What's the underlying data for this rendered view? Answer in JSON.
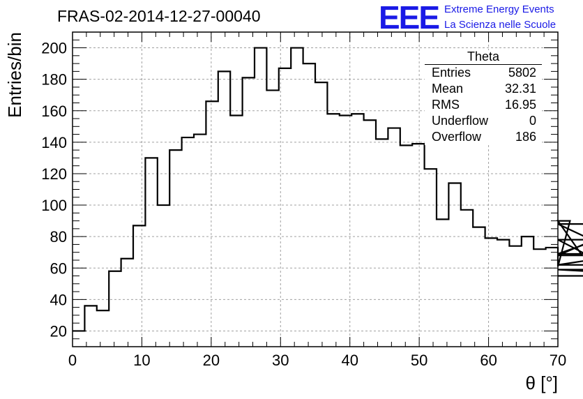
{
  "header": {
    "title": "FRAS-02-2014-12-27-00040"
  },
  "logo": {
    "mark": "EEE",
    "line1": "Extreme Energy Events",
    "line2": "La Scienza nelle Scuole",
    "color": "#1a1ae6"
  },
  "stats_box": {
    "title": "Theta",
    "rows": [
      {
        "label": "Entries",
        "value": "5802"
      },
      {
        "label": "Mean",
        "value": "32.31"
      },
      {
        "label": "RMS",
        "value": "16.95"
      },
      {
        "label": "Underflow",
        "value": "0"
      },
      {
        "label": "Overflow",
        "value": "186"
      }
    ]
  },
  "chart_data": {
    "type": "histogram",
    "title": "FRAS-02-2014-12-27-00040",
    "xlabel": "θ [°]",
    "ylabel": "Entries/bin",
    "xlim": [
      0,
      70
    ],
    "ylim": [
      10,
      210
    ],
    "x_ticks": [
      0,
      10,
      20,
      30,
      40,
      50,
      60,
      70
    ],
    "y_ticks": [
      20,
      40,
      60,
      80,
      100,
      120,
      140,
      160,
      180,
      200
    ],
    "grid": true,
    "bin_width": 1.75,
    "bin_edges_start": 0,
    "values": [
      20,
      36,
      33,
      58,
      66,
      87,
      130,
      100,
      135,
      143,
      145,
      166,
      185,
      157,
      181,
      200,
      173,
      187,
      200,
      190,
      178,
      158,
      157,
      158,
      154,
      142,
      149,
      138,
      139,
      123,
      91,
      114,
      97,
      86,
      79,
      78,
      74,
      80,
      72,
      73,
      61,
      90,
      68,
      78,
      62,
      62,
      69,
      88,
      59,
      55
    ],
    "line_color": "#000000"
  }
}
